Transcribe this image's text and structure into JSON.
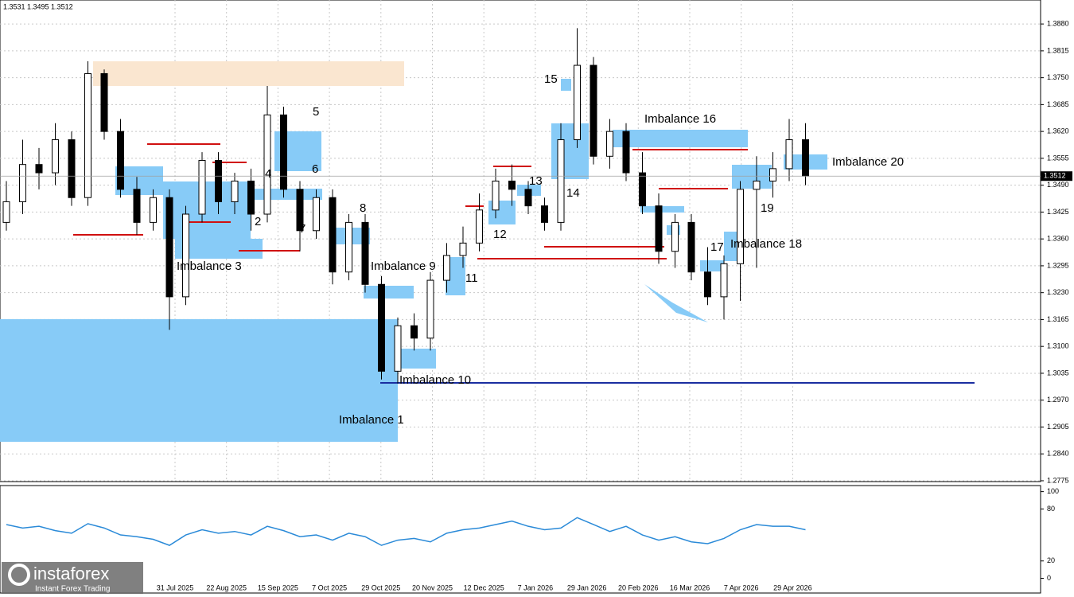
{
  "header": "1.3531 1.3495 1.3512",
  "watermark": {
    "brand": "instaforex",
    "tagline": "Instant Forex Trading"
  },
  "annotations": [
    "Imbalance 1",
    "Imbalance 3",
    "2",
    "4",
    "5",
    "6",
    "7",
    "8",
    "Imbalance 9",
    "Imbalance 10",
    "11",
    "12",
    "13",
    "14",
    "15",
    "Imbalance 16",
    "17",
    "Imbalance 18",
    "19",
    "Imbalance 20"
  ],
  "chart_data": [
    {
      "type": "candlestick",
      "open": [
        1.34,
        1.345,
        1.354,
        1.352,
        1.36,
        1.346,
        1.376,
        1.362,
        1.348,
        1.34,
        1.346,
        1.322,
        1.342,
        1.355,
        1.345,
        1.35,
        1.342,
        1.366,
        1.348,
        1.338,
        1.346,
        1.328,
        1.34,
        1.325,
        1.304,
        1.315,
        1.312,
        1.326,
        1.332,
        1.335,
        1.343,
        1.35,
        1.348,
        1.344,
        1.34,
        1.36,
        1.378,
        1.356,
        1.362,
        1.352,
        1.344,
        1.333,
        1.34,
        1.328,
        1.322,
        1.33,
        1.348,
        1.35,
        1.353,
        1.36
      ],
      "high": [
        1.35,
        1.36,
        1.358,
        1.364,
        1.362,
        1.379,
        1.377,
        1.365,
        1.351,
        1.348,
        1.348,
        1.344,
        1.357,
        1.357,
        1.352,
        1.353,
        1.373,
        1.368,
        1.35,
        1.348,
        1.348,
        1.342,
        1.342,
        1.327,
        1.317,
        1.318,
        1.328,
        1.335,
        1.339,
        1.347,
        1.353,
        1.354,
        1.35,
        1.346,
        1.364,
        1.387,
        1.38,
        1.365,
        1.364,
        1.357,
        1.347,
        1.342,
        1.342,
        1.334,
        1.332,
        1.35,
        1.356,
        1.357,
        1.365,
        1.364
      ],
      "low": [
        1.338,
        1.342,
        1.348,
        1.349,
        1.344,
        1.344,
        1.36,
        1.346,
        1.337,
        1.338,
        1.314,
        1.32,
        1.34,
        1.342,
        1.342,
        1.338,
        1.34,
        1.346,
        1.333,
        1.336,
        1.325,
        1.326,
        1.323,
        1.302,
        1.301,
        1.309,
        1.309,
        1.323,
        1.329,
        1.333,
        1.341,
        1.344,
        1.342,
        1.338,
        1.338,
        1.358,
        1.354,
        1.353,
        1.35,
        1.342,
        1.33,
        1.329,
        1.326,
        1.32,
        1.3165,
        1.321,
        1.329,
        1.346,
        1.35,
        1.349
      ],
      "close": [
        1.345,
        1.354,
        1.352,
        1.36,
        1.346,
        1.376,
        1.362,
        1.348,
        1.34,
        1.346,
        1.322,
        1.342,
        1.355,
        1.345,
        1.35,
        1.342,
        1.366,
        1.348,
        1.338,
        1.346,
        1.328,
        1.34,
        1.325,
        1.304,
        1.315,
        1.312,
        1.326,
        1.332,
        1.335,
        1.343,
        1.35,
        1.348,
        1.344,
        1.34,
        1.36,
        1.378,
        1.356,
        1.362,
        1.352,
        1.344,
        1.333,
        1.34,
        1.328,
        1.322,
        1.33,
        1.348,
        1.35,
        1.353,
        1.36,
        1.3512
      ],
      "ylim": [
        1.2773,
        1.3938
      ],
      "yticks": [
        {
          "value": 1.388,
          "label": "1.3880"
        },
        1.3815,
        {
          "value": 1.375,
          "label": "1.3750"
        },
        1.3685,
        {
          "value": 1.362,
          "label": "1.3620"
        },
        1.3555,
        {
          "value": 1.349,
          "label": "1.3490"
        },
        1.3425,
        {
          "value": 1.336,
          "label": "1.3360"
        },
        1.3295,
        {
          "value": 1.323,
          "label": "1.3230"
        },
        1.3165,
        {
          "value": 1.31,
          "label": "1.3100"
        },
        1.3035,
        {
          "value": 1.297,
          "label": "1.2970"
        },
        1.2905,
        {
          "value": 1.284,
          "label": "1.2840"
        },
        1.2775
      ],
      "date_labels": [
        "31 Jul 2025",
        "22 Aug 2025",
        "15 Sep 2025",
        "7 Oct 2025",
        "29 Oct 2025",
        "20 Nov 2025",
        "12 Dec 2025",
        "7 Jan 2026",
        "29 Jan 2026",
        "20 Feb 2026",
        "16 Mar 2026",
        "7 Apr 2026",
        "29 Apr 2026"
      ],
      "grid": true
    },
    {
      "type": "line",
      "color": "#2a8ad8",
      "values": [
        62,
        58,
        60,
        55,
        52,
        63,
        58,
        50,
        48,
        45,
        38,
        50,
        56,
        52,
        54,
        50,
        60,
        55,
        48,
        50,
        44,
        52,
        48,
        38,
        44,
        46,
        42,
        52,
        56,
        58,
        62,
        66,
        60,
        56,
        58,
        70,
        62,
        54,
        60,
        50,
        44,
        48,
        42,
        40,
        46,
        56,
        62,
        60,
        60,
        56
      ],
      "ylim": [
        -17,
        107
      ],
      "yticks": [
        100,
        80,
        20,
        0
      ]
    }
  ]
}
